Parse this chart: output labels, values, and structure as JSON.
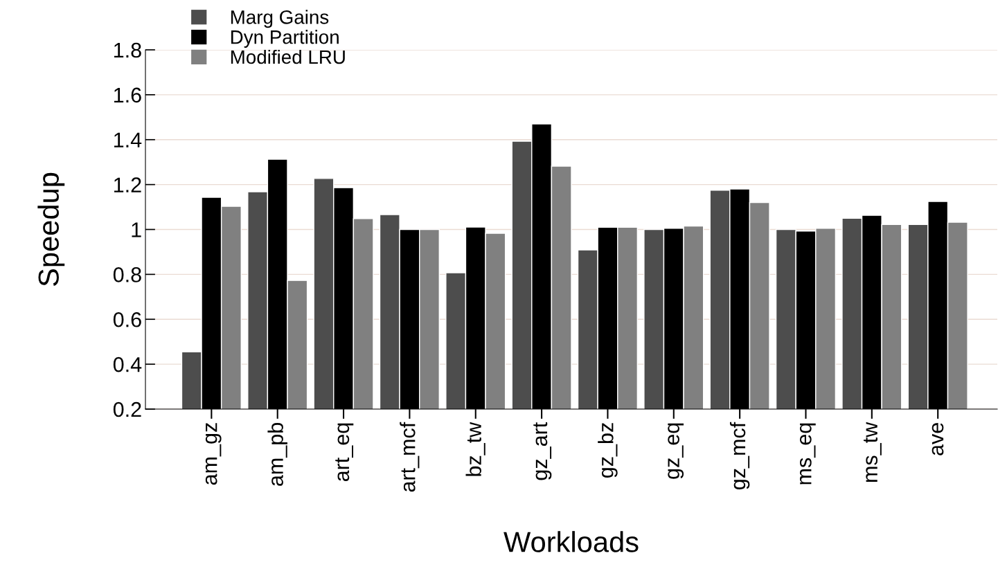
{
  "chart_data": {
    "type": "bar",
    "xlabel": "Workloads",
    "ylabel": "Speedup",
    "categories": [
      "am_gz",
      "am_pb",
      "art_eq",
      "art_mcf",
      "bz_tw",
      "gz_art",
      "gz_bz",
      "gz_eq",
      "gz_mcf",
      "ms_eq",
      "ms_tw",
      "ave"
    ],
    "series": [
      {
        "name": "Marg Gains",
        "color": "#4d4d4d",
        "values": [
          0.455,
          1.168,
          1.227,
          1.066,
          0.807,
          1.393,
          0.909,
          1.0,
          1.175,
          1.0,
          1.05,
          1.022
        ]
      },
      {
        "name": "Dyn Partition",
        "color": "#000000",
        "values": [
          1.143,
          1.313,
          1.186,
          1.0,
          1.011,
          1.47,
          1.01,
          1.005,
          1.18,
          0.993,
          1.063,
          1.125
        ]
      },
      {
        "name": "Modified LRU",
        "color": "#808080",
        "values": [
          1.103,
          0.773,
          1.048,
          1.0,
          0.983,
          1.282,
          1.01,
          1.015,
          1.12,
          1.005,
          1.022,
          1.032
        ]
      }
    ],
    "ylim": [
      0.2,
      1.8
    ],
    "yticks": [
      0.2,
      0.4,
      0.6,
      0.8,
      1,
      1.2,
      1.4,
      1.6,
      1.8
    ],
    "grid": "y",
    "legend": "top left"
  }
}
